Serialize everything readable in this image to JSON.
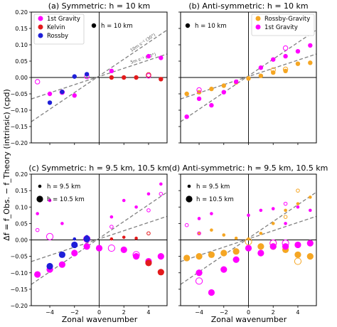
{
  "figure": {
    "ylabel": "Δf = f_Obs. − f_Theory (intrinsic) (cpd)",
    "xlabel": "Zonal wavenumber"
  },
  "colors": {
    "gravity": "#ff00ff",
    "kelvin": "#e31a1c",
    "rossby": "#1f1fd8",
    "rossby_gravity": "#f5a623",
    "theory_line": "#808080"
  },
  "chart_data": [
    {
      "type": "scatter",
      "panel": "a",
      "title": "(a) Symmetric: h = 10 km",
      "xlim": [
        -5.5,
        5.5
      ],
      "ylim": [
        -0.2,
        0.2
      ],
      "xticks": [
        -4,
        -2,
        0,
        2,
        4
      ],
      "yticks": [
        -0.2,
        -0.15,
        -0.1,
        -0.05,
        0.0,
        0.05,
        0.1,
        0.15,
        0.2
      ],
      "ytick_labels": [
        "−0.20",
        "−0.15",
        "−0.10",
        "−0.05",
        "0.00",
        "0.05",
        "0.10",
        "0.15",
        "0.20"
      ],
      "xtick_labels": [],
      "grid": false,
      "legend": [
        {
          "label": "1st Gravity",
          "color": "#ff00ff"
        },
        {
          "label": "Kelvin",
          "color": "#e31a1c"
        },
        {
          "label": "Rossby",
          "color": "#1f1fd8"
        }
      ],
      "size_legend": [
        {
          "label": "h = 10 km",
          "size": "medium"
        }
      ],
      "line_labels": [
        "10m s⁻¹ (30°)",
        "5m s⁻¹ (30°)"
      ],
      "lines": [
        {
          "slope": 0.0255,
          "intercept": 0.005
        },
        {
          "slope": 0.0125,
          "intercept": 0.003
        }
      ],
      "series": [
        {
          "name": "1st Gravity",
          "color": "#ff00ff",
          "size": "medium",
          "filled": true,
          "points": [
            [
              -4,
              -0.05
            ],
            [
              -2,
              -0.055
            ],
            [
              1,
              0.02
            ],
            [
              4,
              0.065
            ],
            [
              5,
              0.06
            ]
          ]
        },
        {
          "name": "1st Gravity",
          "color": "#ff00ff",
          "size": "medium",
          "filled": false,
          "points": [
            [
              -5,
              -0.013
            ],
            [
              -3,
              -0.045
            ],
            [
              -1,
              0.003
            ],
            [
              4,
              0.005
            ]
          ]
        },
        {
          "name": "Kelvin",
          "color": "#e31a1c",
          "size": "medium",
          "filled": true,
          "points": [
            [
              1,
              0.0
            ],
            [
              2,
              0.0
            ],
            [
              3,
              0.0
            ],
            [
              5,
              -0.005
            ]
          ]
        },
        {
          "name": "Kelvin",
          "color": "#e31a1c",
          "size": "medium",
          "filled": false,
          "points": [
            [
              4,
              0.008
            ]
          ]
        },
        {
          "name": "Rossby",
          "color": "#1f1fd8",
          "size": "medium",
          "filled": true,
          "points": [
            [
              -4,
              -0.077
            ],
            [
              -3,
              -0.044
            ],
            [
              -2,
              0.003
            ],
            [
              -1,
              0.01
            ]
          ]
        }
      ]
    },
    {
      "type": "scatter",
      "panel": "b",
      "title": "(b) Anti-symmetric: h = 10 km",
      "xlim": [
        -5.5,
        5.5
      ],
      "ylim": [
        -0.2,
        0.2
      ],
      "xticks": [
        -4,
        -2,
        0,
        2,
        4
      ],
      "xtick_labels": [],
      "ytick_labels": [],
      "grid": false,
      "legend": [
        {
          "label": "Rossby-Gravity",
          "color": "#f5a623"
        },
        {
          "label": "1st Gravity",
          "color": "#ff00ff"
        }
      ],
      "size_legend": [
        {
          "label": "h = 10 km",
          "size": "medium"
        }
      ],
      "lines": [
        {
          "slope": 0.0255,
          "intercept": 0.005
        },
        {
          "slope": 0.0125,
          "intercept": 0.003
        }
      ],
      "series": [
        {
          "name": "Rossby-Gravity",
          "color": "#f5a623",
          "size": "medium",
          "filled": true,
          "points": [
            [
              -5,
              -0.05
            ],
            [
              -4,
              -0.045
            ],
            [
              -3,
              -0.035
            ],
            [
              -2,
              -0.025
            ],
            [
              -1,
              -0.015
            ],
            [
              0,
              -0.003
            ],
            [
              1,
              0.005
            ],
            [
              2,
              0.015
            ],
            [
              3,
              0.02
            ],
            [
              4,
              0.042
            ],
            [
              5,
              0.045
            ]
          ]
        },
        {
          "name": "Rossby-Gravity",
          "color": "#f5a623",
          "size": "medium",
          "filled": false,
          "points": [
            [
              2,
              0.023
            ],
            [
              3,
              0.025
            ]
          ]
        },
        {
          "name": "1st Gravity",
          "color": "#ff00ff",
          "size": "medium",
          "filled": true,
          "points": [
            [
              -5,
              -0.12
            ],
            [
              -4,
              -0.065
            ],
            [
              -3,
              -0.085
            ],
            [
              -2,
              -0.045
            ],
            [
              -1,
              -0.013
            ],
            [
              1,
              0.03
            ],
            [
              2,
              0.055
            ],
            [
              3,
              0.065
            ],
            [
              4,
              0.08
            ],
            [
              5,
              0.098
            ]
          ]
        },
        {
          "name": "1st Gravity",
          "color": "#ff00ff",
          "size": "medium",
          "filled": false,
          "points": [
            [
              -4,
              -0.038
            ],
            [
              3,
              0.09
            ]
          ]
        }
      ]
    },
    {
      "type": "scatter",
      "panel": "c",
      "title": "(c) Symmetric: h = 9.5 km, 10.5 km",
      "xlim": [
        -5.5,
        5.5
      ],
      "ylim": [
        -0.2,
        0.2
      ],
      "xticks": [
        -4,
        -2,
        0,
        2,
        4
      ],
      "xtick_labels": [
        "−4",
        "−2",
        "0",
        "2",
        "4"
      ],
      "yticks": [
        -0.2,
        -0.15,
        -0.1,
        -0.05,
        0.0,
        0.05,
        0.1,
        0.15,
        0.2
      ],
      "ytick_labels": [
        "−0.20",
        "−0.15",
        "−0.10",
        "−0.05",
        "0.00",
        "0.05",
        "0.10",
        "0.15",
        "0.20"
      ],
      "grid": false,
      "size_legend": [
        {
          "label": "h = 9.5 km",
          "size": "small"
        },
        {
          "label": "h = 10.5 km",
          "size": "large"
        }
      ],
      "lines": [
        {
          "slope": 0.0255,
          "intercept": 0.005
        },
        {
          "slope": 0.0125,
          "intercept": 0.003
        }
      ],
      "series": [
        {
          "name": "1st Gravity",
          "color": "#ff00ff",
          "size": "small",
          "filled": true,
          "points": [
            [
              -5,
              0.08
            ],
            [
              -4,
              0.12
            ],
            [
              -3,
              0.05
            ],
            [
              -2,
              -0.035
            ],
            [
              1,
              0.07
            ],
            [
              2,
              0.12
            ],
            [
              3,
              0.1
            ],
            [
              4,
              0.14
            ],
            [
              5,
              0.17
            ]
          ]
        },
        {
          "name": "1st Gravity",
          "color": "#ff00ff",
          "size": "large",
          "filled": true,
          "points": [
            [
              -5,
              -0.105
            ],
            [
              -4,
              -0.09
            ],
            [
              -3,
              -0.075
            ],
            [
              -2,
              -0.04
            ],
            [
              -1,
              -0.02
            ],
            [
              0,
              -0.025
            ],
            [
              2,
              -0.03
            ],
            [
              3,
              -0.05
            ],
            [
              4,
              -0.065
            ],
            [
              5,
              -0.05
            ]
          ]
        },
        {
          "name": "1st Gravity",
          "color": "#ff00ff",
          "size": "large",
          "filled": false,
          "points": [
            [
              -4,
              0.01
            ],
            [
              -1,
              0.003
            ],
            [
              1,
              -0.025
            ],
            [
              3,
              -0.045
            ]
          ]
        },
        {
          "name": "1st Gravity",
          "color": "#ff00ff",
          "size": "small",
          "filled": false,
          "points": [
            [
              1,
              0.04
            ],
            [
              4,
              0.09
            ],
            [
              5,
              0.14
            ],
            [
              -5,
              0.03
            ]
          ]
        },
        {
          "name": "Kelvin",
          "color": "#e31a1c",
          "size": "small",
          "filled": true,
          "points": [
            [
              1,
              0.003
            ],
            [
              2,
              0.008
            ],
            [
              3,
              0.005
            ]
          ]
        },
        {
          "name": "Kelvin",
          "color": "#e31a1c",
          "size": "large",
          "filled": true,
          "points": [
            [
              4,
              -0.07
            ],
            [
              5,
              -0.098
            ]
          ]
        },
        {
          "name": "Kelvin",
          "color": "#e31a1c",
          "size": "small",
          "filled": false,
          "points": [
            [
              4,
              0.02
            ]
          ]
        },
        {
          "name": "Rossby",
          "color": "#1f1fd8",
          "size": "large",
          "filled": true,
          "points": [
            [
              -4,
              -0.08
            ],
            [
              -3,
              -0.045
            ],
            [
              -2,
              -0.015
            ],
            [
              -1,
              0.003
            ]
          ]
        },
        {
          "name": "Rossby",
          "color": "#1f1fd8",
          "size": "small",
          "filled": true,
          "points": [
            [
              -2,
              0.003
            ],
            [
              -1,
              0.01
            ]
          ]
        }
      ]
    },
    {
      "type": "scatter",
      "panel": "d",
      "title": "(d) Anti-symmetric: h = 9.5 km, 10.5 km",
      "xlim": [
        -5.5,
        5.5
      ],
      "ylim": [
        -0.2,
        0.2
      ],
      "xticks": [
        -4,
        -2,
        0,
        2,
        4
      ],
      "xtick_labels": [
        "−4",
        "−2",
        "0",
        "2",
        "4"
      ],
      "ytick_labels": [],
      "grid": false,
      "size_legend": [
        {
          "label": "h = 9.5 km",
          "size": "small"
        },
        {
          "label": "h = 10.5 km",
          "size": "large"
        }
      ],
      "lines": [
        {
          "slope": 0.0255,
          "intercept": 0.005
        },
        {
          "slope": 0.0125,
          "intercept": 0.003
        }
      ],
      "series": [
        {
          "name": "Rossby-Gravity",
          "color": "#f5a623",
          "size": "large",
          "filled": true,
          "points": [
            [
              -5,
              -0.055
            ],
            [
              -4,
              -0.05
            ],
            [
              -3,
              -0.045
            ],
            [
              -2,
              -0.04
            ],
            [
              -1,
              -0.035
            ],
            [
              1,
              -0.02
            ],
            [
              2,
              -0.02
            ],
            [
              3,
              -0.03
            ],
            [
              4,
              -0.045
            ],
            [
              5,
              -0.05
            ]
          ]
        },
        {
          "name": "Rossby-Gravity",
          "color": "#f5a623",
          "size": "small",
          "filled": true,
          "points": [
            [
              -4,
              0.02
            ],
            [
              -3,
              0.03
            ],
            [
              -2,
              0.015
            ],
            [
              -1,
              0.005
            ],
            [
              0,
              0.003
            ],
            [
              1,
              0.02
            ],
            [
              2,
              0.05
            ],
            [
              3,
              0.09
            ],
            [
              4,
              0.11
            ],
            [
              5,
              0.13
            ]
          ]
        },
        {
          "name": "Rossby-Gravity",
          "color": "#f5a623",
          "size": "large",
          "filled": false,
          "points": [
            [
              0,
              -0.005
            ],
            [
              2,
              -0.01
            ],
            [
              4,
              -0.065
            ]
          ]
        },
        {
          "name": "Rossby-Gravity",
          "color": "#f5a623",
          "size": "small",
          "filled": false,
          "points": [
            [
              3,
              0.07
            ],
            [
              4,
              0.15
            ]
          ]
        },
        {
          "name": "1st Gravity",
          "color": "#ff00ff",
          "size": "small",
          "filled": true,
          "points": [
            [
              -4,
              0.065
            ],
            [
              -3,
              0.08
            ],
            [
              0,
              0.075
            ],
            [
              1,
              0.09
            ],
            [
              2,
              0.095
            ],
            [
              3,
              0.05
            ],
            [
              4,
              0.1
            ],
            [
              5,
              0.09
            ]
          ]
        },
        {
          "name": "1st Gravity",
          "color": "#ff00ff",
          "size": "small",
          "filled": false,
          "points": [
            [
              -5,
              0.045
            ],
            [
              -4,
              0.02
            ],
            [
              3,
              0.11
            ]
          ]
        },
        {
          "name": "1st Gravity",
          "color": "#ff00ff",
          "size": "large",
          "filled": true,
          "points": [
            [
              -4,
              -0.1
            ],
            [
              -3,
              -0.16
            ],
            [
              -2,
              -0.09
            ],
            [
              -1,
              -0.06
            ],
            [
              0,
              -0.025
            ],
            [
              1,
              -0.04
            ],
            [
              2,
              -0.02
            ],
            [
              3,
              -0.02
            ],
            [
              4,
              -0.015
            ],
            [
              5,
              -0.01
            ]
          ]
        },
        {
          "name": "1st Gravity",
          "color": "#ff00ff",
          "size": "large",
          "filled": false,
          "points": [
            [
              -4,
              -0.125
            ],
            [
              2,
              -0.01
            ],
            [
              3,
              -0.01
            ]
          ]
        }
      ]
    }
  ]
}
